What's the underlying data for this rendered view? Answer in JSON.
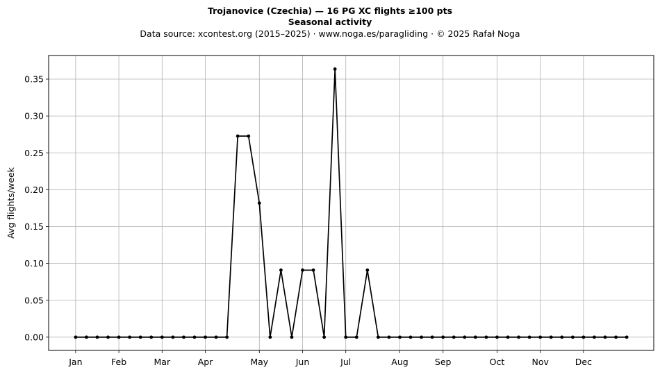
{
  "chart_data": {
    "type": "line",
    "title": "Trojanovice (Czechia)  —  16 PG XC flights ≥100 pts",
    "subtitle": "Seasonal activity",
    "caption": "Data source: xcontest.org (2015–2025)  ·  www.noga.es/paragliding  ·  © 2025 Rafał Noga",
    "xlabel": "",
    "ylabel": "Avg flights/week",
    "ylim": [
      -0.018,
      0.382
    ],
    "xlim": [
      -2.5,
      53.5
    ],
    "yticks": [
      0.0,
      0.05,
      0.1,
      0.15,
      0.2,
      0.25,
      0.3,
      0.35
    ],
    "ytick_labels": [
      "0.00",
      "0.05",
      "0.10",
      "0.15",
      "0.20",
      "0.25",
      "0.30",
      "0.35"
    ],
    "month_ticks": [
      {
        "label": "Jan",
        "week": 0
      },
      {
        "label": "Feb",
        "week": 4
      },
      {
        "label": "Mar",
        "week": 8
      },
      {
        "label": "Apr",
        "week": 12
      },
      {
        "label": "May",
        "week": 17
      },
      {
        "label": "Jun",
        "week": 21
      },
      {
        "label": "Jul",
        "week": 25
      },
      {
        "label": "Aug",
        "week": 30
      },
      {
        "label": "Sep",
        "week": 34
      },
      {
        "label": "Oct",
        "week": 39
      },
      {
        "label": "Nov",
        "week": 43
      },
      {
        "label": "Dec",
        "week": 47
      }
    ],
    "grid": true,
    "line_color": "#000000",
    "series": [
      {
        "x": [
          0,
          1,
          2,
          3,
          4,
          5,
          6,
          7,
          8,
          9,
          10,
          11,
          12,
          13,
          14,
          15,
          16,
          17,
          18,
          19,
          20,
          21,
          22,
          23,
          24,
          25,
          26,
          27,
          28,
          29,
          30,
          31,
          32,
          33,
          34,
          35,
          36,
          37,
          38,
          39,
          40,
          41,
          42,
          43,
          44,
          45,
          46,
          47,
          48,
          49,
          50,
          51
        ],
        "values": [
          0,
          0,
          0,
          0,
          0,
          0,
          0,
          0,
          0,
          0,
          0,
          0,
          0,
          0,
          0,
          0.2727,
          0.2727,
          0.1818,
          0,
          0.0909,
          0,
          0.0909,
          0.0909,
          0,
          0.3636,
          0,
          0,
          0.0909,
          0,
          0,
          0,
          0,
          0,
          0,
          0,
          0,
          0,
          0,
          0,
          0,
          0,
          0,
          0,
          0,
          0,
          0,
          0,
          0,
          0,
          0,
          0,
          0
        ]
      }
    ]
  }
}
